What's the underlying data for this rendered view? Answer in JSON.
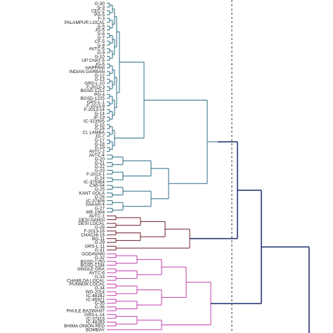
{
  "colors": {
    "cluster_teal": "#2b6e85",
    "cluster_maroon": "#6b1f2a",
    "cluster_magenta": "#c23fae",
    "cluster_navy": "#1c2b6e",
    "cutoff_line": "#333333"
  },
  "cutoff": {
    "style": "dashed"
  },
  "clusters": [
    {
      "name": "teal",
      "leaves": [
        "G-30",
        "G-3",
        "CEC-2",
        "PG-5",
        "F-3",
        "PALAMPUR LOCAL",
        "G-5",
        "JG-5",
        "G-6",
        "G-7",
        "CF-5",
        "G-8",
        "AVTC-5",
        "G-9",
        "G-10",
        "UP CHAT-5",
        "JG-6",
        "HAPPANI",
        "INDIAN GARBAN",
        "G-12",
        "G-13",
        "GRS-L-10",
        "F-2013-3",
        "BGSD-1212",
        "PG-4",
        "BGSD-1225",
        "GRS-L-1",
        "F-2013-8",
        "F-2013-14",
        "G-14",
        "JF-19",
        "IC-323505",
        "G-15",
        "G-16",
        "CL LAMBA",
        "JG-7",
        "G-17",
        "G-18",
        "G-19",
        "AVTC-2",
        "AVTC-4",
        "G-20",
        "G-21",
        "G-22",
        "G-23",
        "F-2013-1",
        "G-24",
        "IC-375904",
        "CWI-54",
        "G-25",
        "KANT GOLA",
        "G-26",
        "IC-37406",
        "SAKAR-4",
        "G-27",
        "WE-1904"
      ]
    },
    {
      "name": "maroon",
      "leaves": [
        "AVTC-1",
        "DESI DANGI",
        "DESI LOCAL",
        "G-28",
        "F-2013-16",
        "CHACHI-16",
        "BG-11",
        "G-29",
        "GRS-L-11",
        "G-31"
      ]
    },
    {
      "name": "magenta",
      "leaves": [
        "GODAVARI",
        "G-32",
        "BGSD-1250",
        "BGSD-1244",
        "SINGLE GRA",
        "AVTC-6",
        "G-33",
        "CHAMLOA LOCAL",
        "PUNNUR LOCAL",
        "G-34",
        "WG-2014",
        "IC-48282",
        "IC-46921",
        "G-35",
        "G-36",
        "PHULE BASWANT",
        "GRS-L-14",
        "IC-37416",
        "IC-48283",
        "BHIMA ONION RED",
        "BOMBAY"
      ]
    }
  ]
}
